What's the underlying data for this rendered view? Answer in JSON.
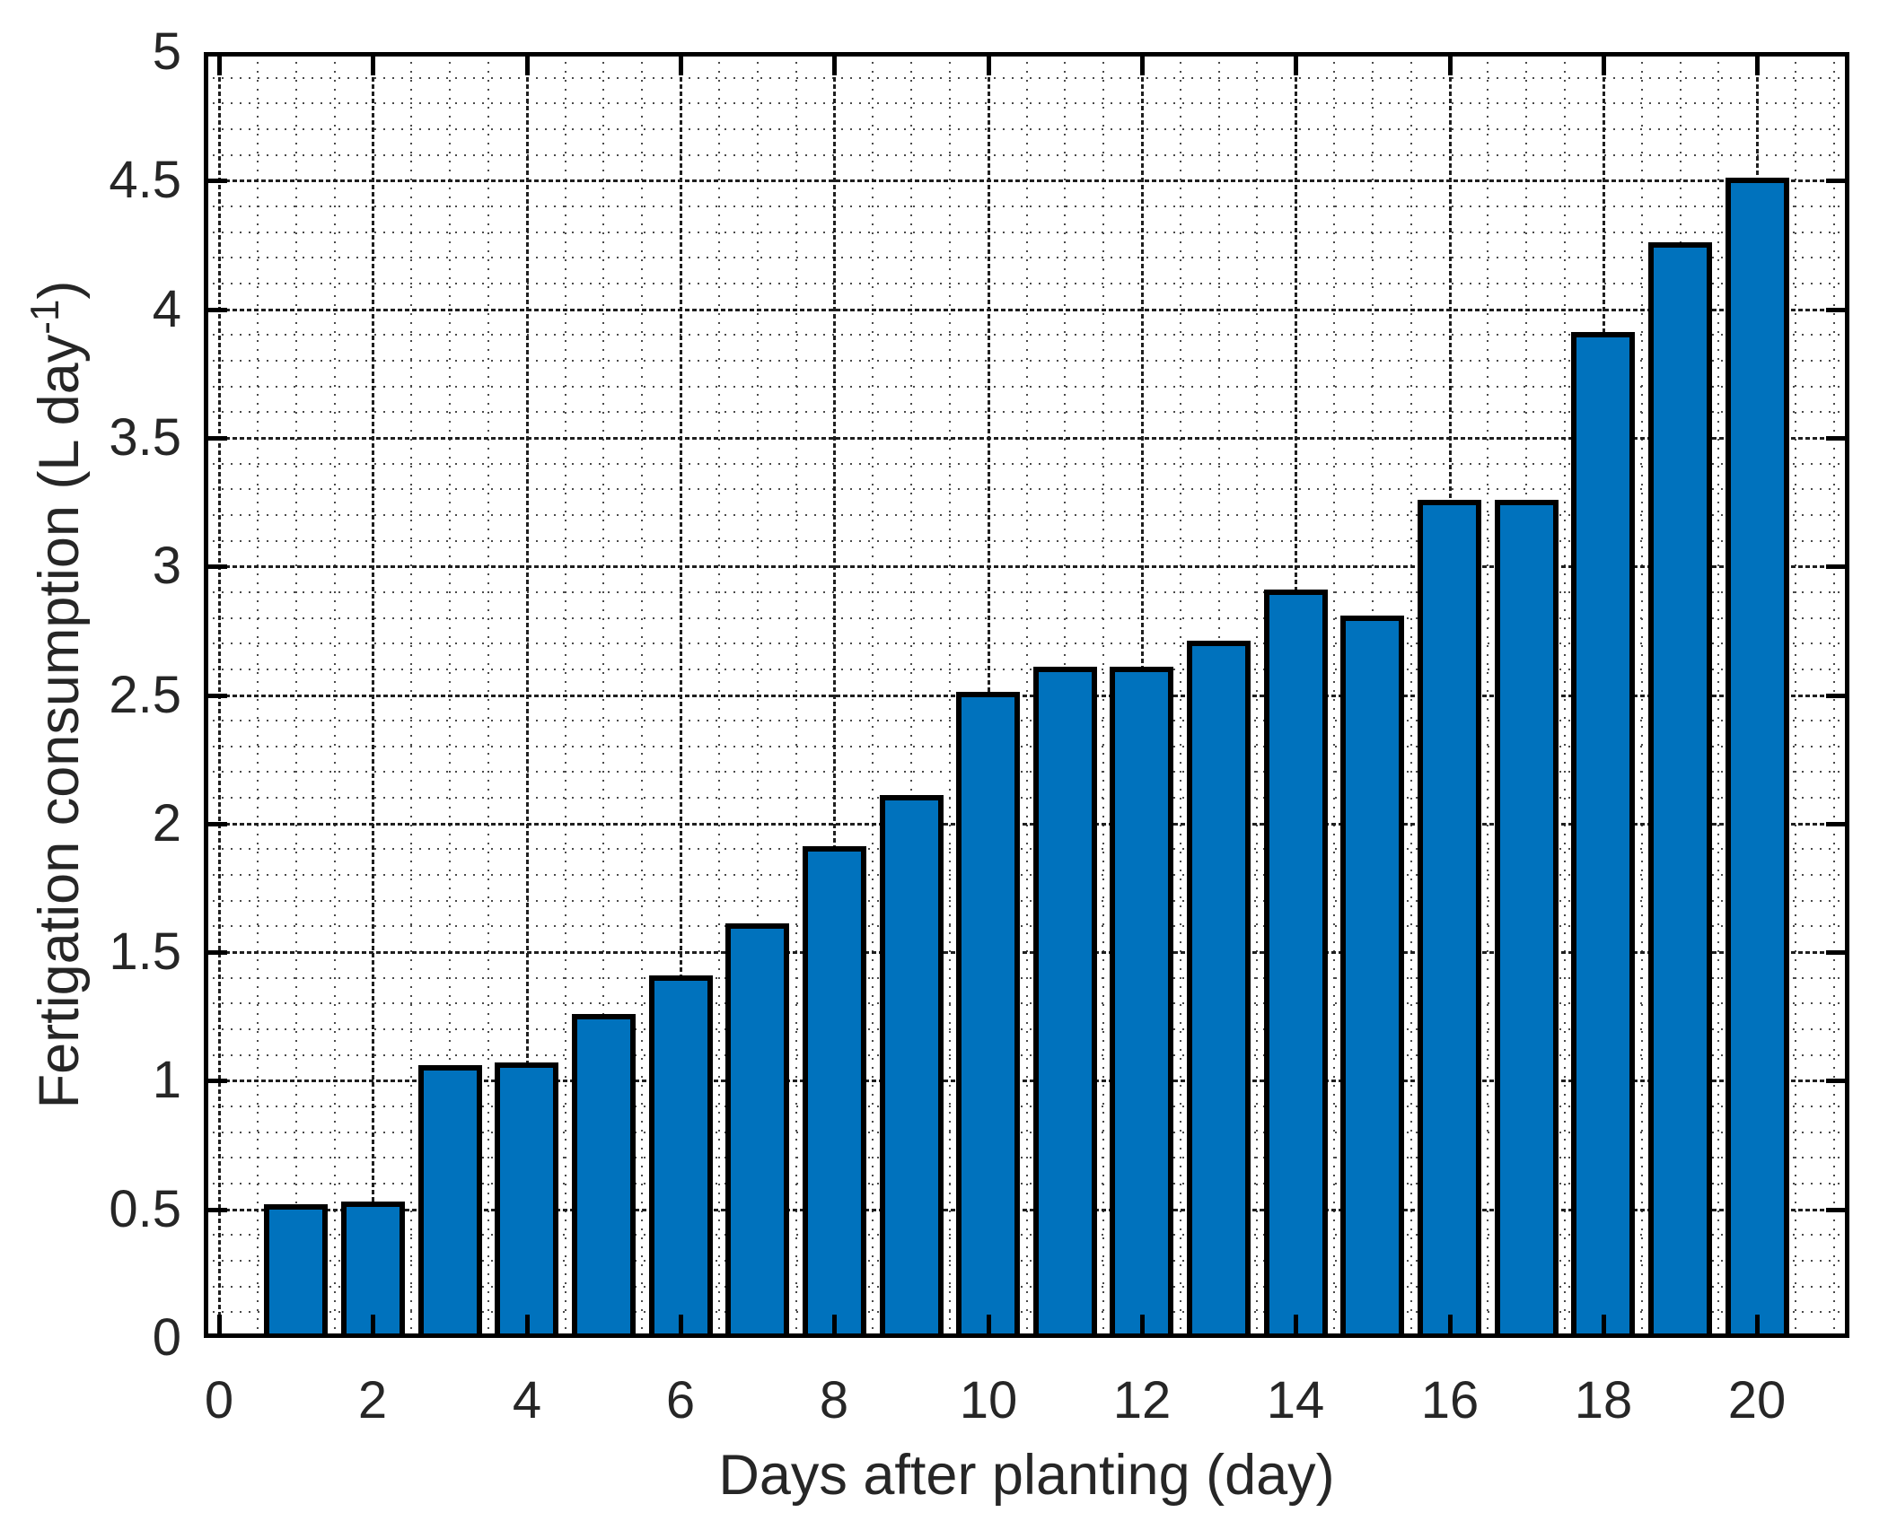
{
  "chart_data": {
    "type": "bar",
    "title": "",
    "xlabel": "Days after planting (day)",
    "ylabel": "Fertigation consumption (L day-1)",
    "ylabel_parts": {
      "prefix": "Fertigation consumption (L day",
      "superscript": "-1",
      "suffix": ")"
    },
    "categories": [
      1,
      2,
      3,
      4,
      5,
      6,
      7,
      8,
      9,
      10,
      11,
      12,
      13,
      14,
      15,
      16,
      17,
      18,
      19,
      20
    ],
    "values": [
      0.51,
      0.52,
      1.05,
      1.06,
      1.25,
      1.4,
      1.6,
      1.9,
      2.1,
      2.5,
      2.6,
      2.6,
      2.7,
      2.9,
      2.8,
      3.25,
      3.25,
      3.9,
      4.25,
      4.5
    ],
    "xlim": [
      -0.2,
      21.2
    ],
    "ylim": [
      0,
      5
    ],
    "x_major_ticks": [
      0,
      2,
      4,
      6,
      8,
      10,
      12,
      14,
      16,
      18,
      20
    ],
    "x_tick_labels": [
      "0",
      "2",
      "4",
      "6",
      "8",
      "10",
      "12",
      "14",
      "16",
      "18",
      "20"
    ],
    "y_major_ticks": [
      0,
      0.5,
      1,
      1.5,
      2,
      2.5,
      3,
      3.5,
      4,
      4.5,
      5
    ],
    "y_tick_labels": [
      "0",
      "0.5",
      "1",
      "1.5",
      "2",
      "2.5",
      "3",
      "3.5",
      "4",
      "4.5",
      "5"
    ],
    "x_minor_step": 0.5,
    "y_minor_step": 0.1,
    "grid": "major and minor, dotted",
    "legend": "none",
    "bar_width_days": 0.8,
    "bar_color": "#0072BD",
    "bar_edge_color": "#000000",
    "axes_color": "#000000",
    "text_color": "#262626"
  }
}
